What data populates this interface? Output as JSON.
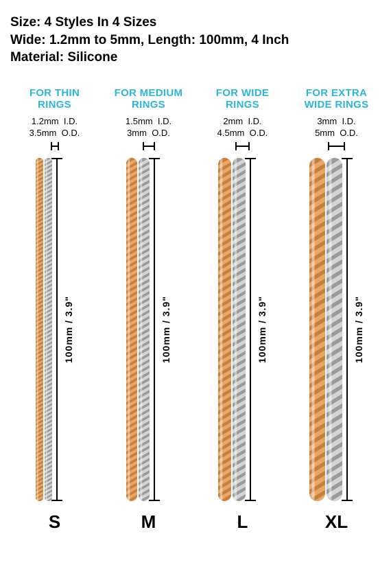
{
  "header": {
    "line1": "Size: 4 Styles In 4 Sizes",
    "line2": "Wide: 1.2mm to 5mm, Length: 100mm, 4 Inch",
    "line3": "Material: Silicone"
  },
  "length_label": "100mm / 3.9\"",
  "title_color": "#2db5db",
  "gold_color": "#e8a668",
  "gold_shadow": "#c77f3a",
  "silver_color": "#d4d4d4",
  "silver_shadow": "#9a9a9a",
  "columns": [
    {
      "title_l1": "FOR THIN",
      "title_l2": "RINGS",
      "id_dim": "1.2mm",
      "od_dim": "3.5mm",
      "id_label": "I.D.",
      "od_label": "O.D.",
      "coil_w": 11,
      "seg_h": 6,
      "bracket_w": 12,
      "size": "S"
    },
    {
      "title_l1": "FOR MEDIUM",
      "title_l2": "RINGS",
      "id_dim": "1.5mm",
      "od_dim": "3mm",
      "id_label": "I.D.",
      "od_label": "O.D.",
      "coil_w": 16,
      "seg_h": 9,
      "bracket_w": 18,
      "size": "M"
    },
    {
      "title_l1": "FOR WIDE",
      "title_l2": "RINGS",
      "id_dim": "2mm",
      "od_dim": "4.5mm",
      "id_label": "I.D.",
      "od_label": "O.D.",
      "coil_w": 19,
      "seg_h": 11,
      "bracket_w": 21,
      "size": "L"
    },
    {
      "title_l1": "FOR EXTRA",
      "title_l2": "WIDE RINGS",
      "id_dim": "3mm",
      "od_dim": "5mm",
      "id_label": "I.D.",
      "od_label": "O.D.",
      "coil_w": 23,
      "seg_h": 14,
      "bracket_w": 25,
      "size": "XL"
    }
  ]
}
